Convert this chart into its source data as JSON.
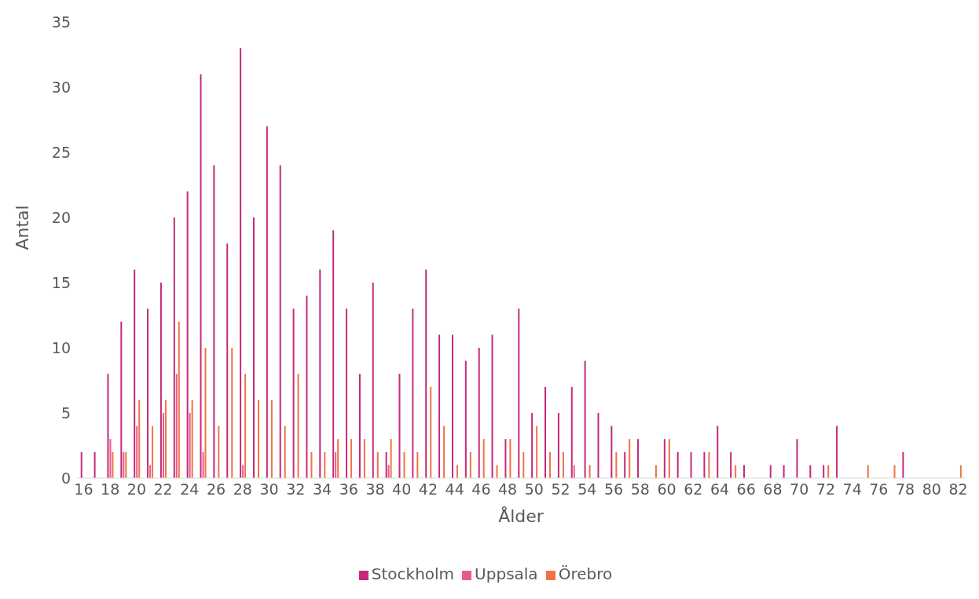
{
  "chart_data": {
    "type": "bar",
    "xlabel": "Ålder",
    "ylabel": "Antal",
    "categories": [
      "16",
      null,
      "18",
      null,
      "20",
      null,
      "22",
      null,
      "24",
      null,
      "26",
      null,
      "28",
      null,
      "30",
      null,
      "32",
      null,
      "34",
      null,
      "36",
      null,
      "38",
      null,
      "40",
      null,
      "42",
      null,
      "44",
      null,
      "46",
      null,
      "48",
      null,
      "50",
      null,
      "52",
      null,
      "54",
      null,
      "56",
      null,
      "58",
      null,
      "60",
      null,
      "62",
      null,
      "64",
      null,
      "66",
      null,
      "68",
      null,
      "70",
      null,
      "72",
      null,
      "74",
      null,
      "76",
      null,
      "78",
      null,
      "80",
      null,
      "82"
    ],
    "series": [
      {
        "name": "Stockholm",
        "color": "#c5297a",
        "values": [
          2,
          2,
          8,
          12,
          16,
          13,
          15,
          20,
          22,
          31,
          24,
          18,
          33,
          20,
          27,
          24,
          13,
          14,
          16,
          19,
          13,
          8,
          15,
          2,
          8,
          13,
          16,
          11,
          11,
          9,
          10,
          11,
          3,
          13,
          5,
          7,
          5,
          7,
          9,
          5,
          4,
          2,
          3,
          null,
          3,
          2,
          2,
          2,
          4,
          2,
          1,
          null,
          1,
          1,
          3,
          1,
          1,
          4,
          null,
          null,
          null,
          null,
          2,
          null,
          null,
          null,
          null
        ]
      },
      {
        "name": "Uppsala",
        "color": "#ec5a8b",
        "values": [
          null,
          null,
          3,
          2,
          4,
          1,
          5,
          8,
          5,
          2,
          null,
          null,
          1,
          null,
          null,
          null,
          null,
          null,
          null,
          2,
          null,
          null,
          null,
          1,
          null,
          null,
          null,
          null,
          null,
          null,
          null,
          null,
          null,
          null,
          null,
          null,
          null,
          1,
          null,
          null,
          null,
          null,
          null,
          null,
          null,
          null,
          null,
          null,
          null,
          null,
          null,
          null,
          null,
          null,
          null,
          null,
          null,
          null,
          null,
          null,
          null,
          null,
          null,
          null,
          null,
          null,
          null
        ]
      },
      {
        "name": "Örebro",
        "color": "#ee7447",
        "values": [
          null,
          null,
          2,
          2,
          6,
          4,
          6,
          12,
          6,
          10,
          4,
          10,
          8,
          6,
          6,
          4,
          8,
          2,
          2,
          3,
          3,
          3,
          2,
          3,
          2,
          2,
          7,
          4,
          1,
          2,
          3,
          1,
          3,
          2,
          4,
          2,
          2,
          null,
          1,
          null,
          2,
          3,
          null,
          1,
          3,
          null,
          null,
          2,
          null,
          1,
          null,
          null,
          null,
          null,
          null,
          null,
          1,
          null,
          null,
          1,
          null,
          1,
          null,
          null,
          null,
          null,
          1
        ]
      }
    ],
    "ylim": [
      0,
      35
    ],
    "yticks": [
      0,
      5,
      10,
      15,
      20,
      25,
      30,
      35
    ],
    "grid": false,
    "legend": "bottom"
  }
}
